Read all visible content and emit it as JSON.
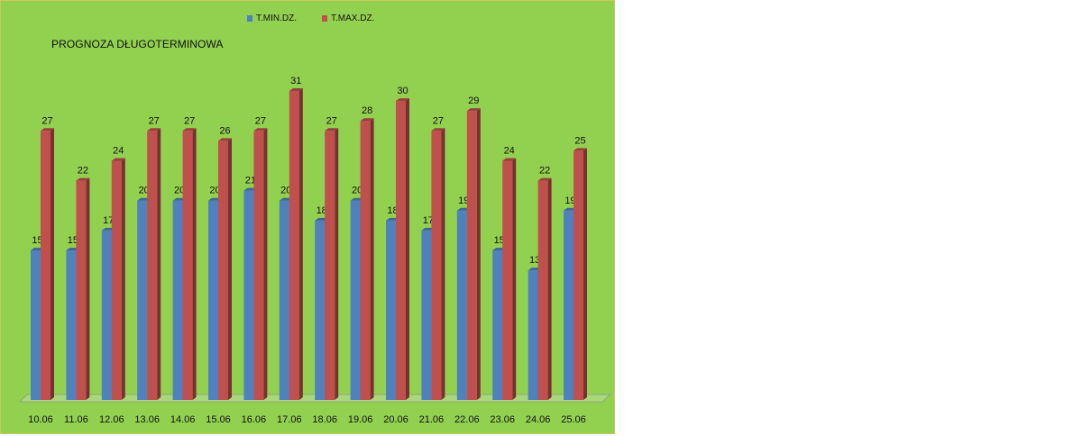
{
  "chart_data": {
    "type": "bar",
    "title": "PROGNOZA DŁUGOTERMINOWA",
    "categories": [
      "10.06",
      "11.06",
      "12.06",
      "13.06",
      "14.06",
      "15.06",
      "16.06",
      "17.06",
      "18.06",
      "19.06",
      "20.06",
      "21.06",
      "22.06",
      "23.06",
      "24.06",
      "25.06"
    ],
    "series": [
      {
        "name": "T.MIN.DZ.",
        "color": "#4f81bd",
        "values": [
          15,
          15,
          17,
          20,
          20,
          20,
          21,
          20,
          18,
          20,
          18,
          17,
          19,
          15,
          13,
          19
        ]
      },
      {
        "name": "T.MAX.DZ.",
        "color": "#c0504d",
        "values": [
          27,
          22,
          24,
          27,
          27,
          26,
          27,
          31,
          27,
          28,
          30,
          27,
          29,
          24,
          22,
          25
        ]
      }
    ],
    "ylim": [
      0,
      31
    ],
    "grid": false,
    "legend_position": "top",
    "data_labels": true,
    "background_color": "#92d050"
  }
}
